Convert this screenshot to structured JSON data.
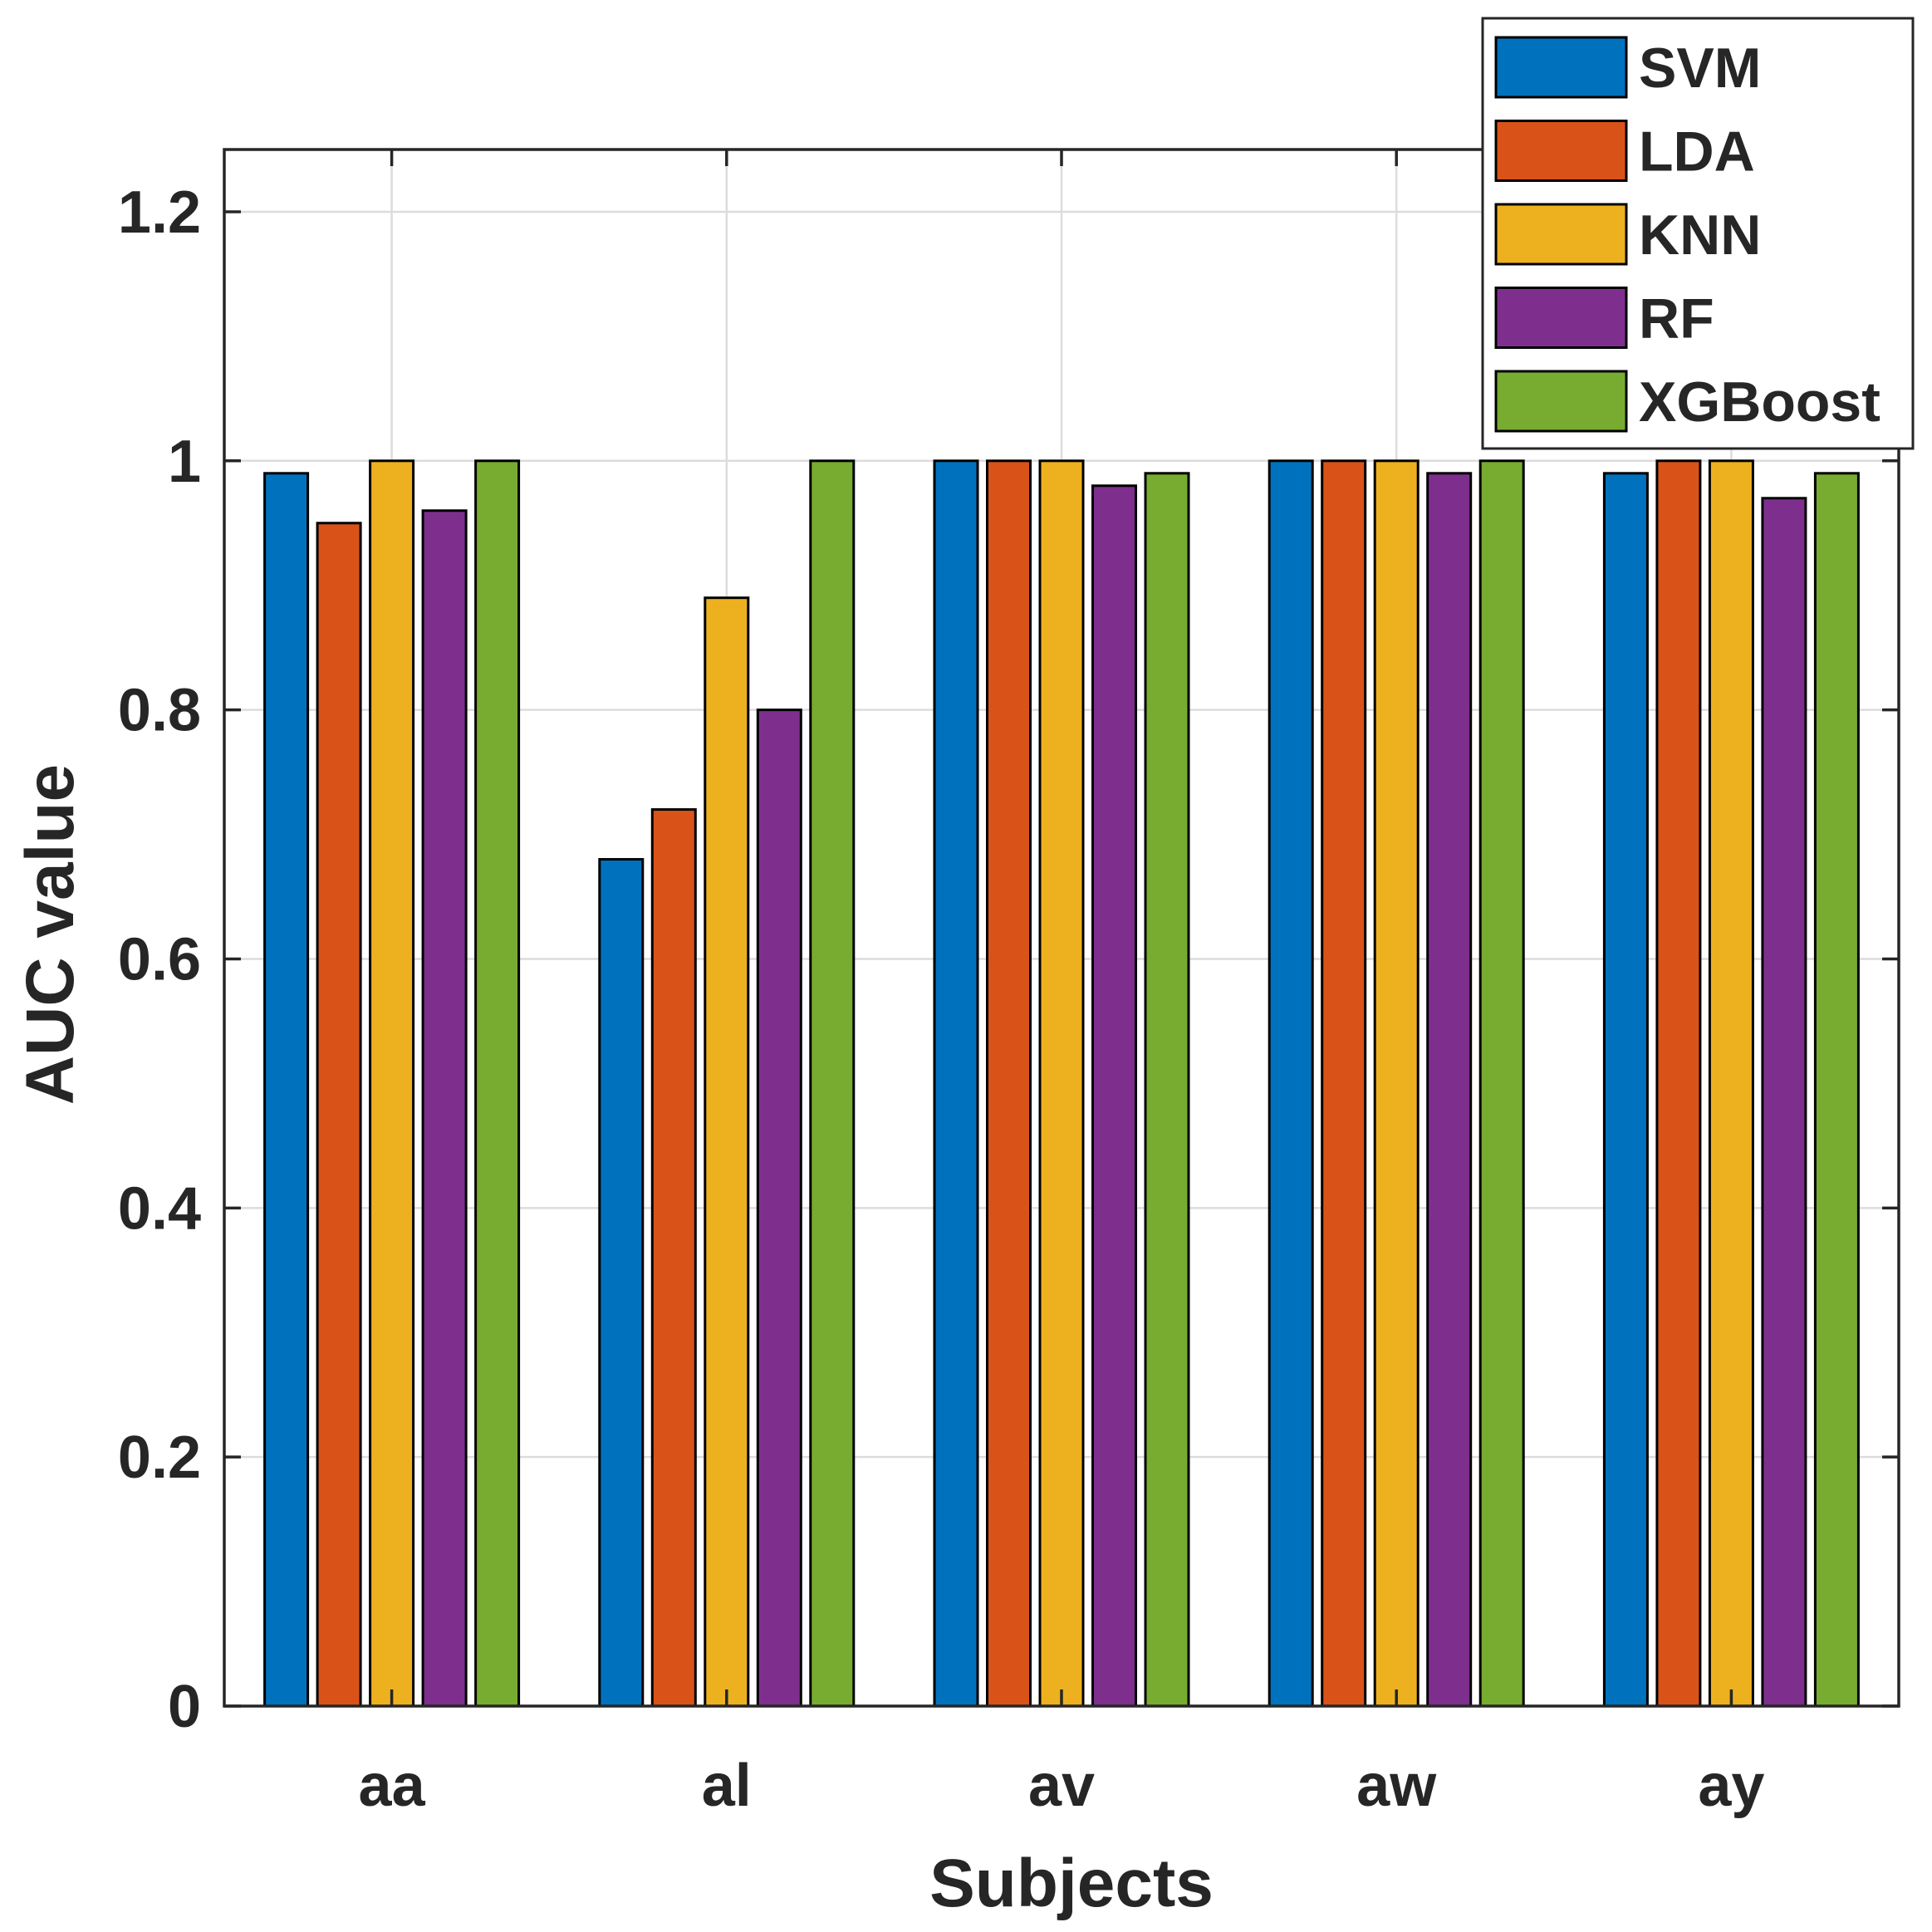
{
  "chart_data": {
    "type": "bar",
    "title": "",
    "xlabel": "Subjects",
    "ylabel": "AUC value",
    "categories": [
      "aa",
      "al",
      "av",
      "aw",
      "ay"
    ],
    "ylim": [
      0,
      1.25
    ],
    "yticks": [
      0,
      0.2,
      0.4,
      0.6,
      0.8,
      1,
      1.2
    ],
    "ytick_labels": [
      "0",
      "0.2",
      "0.4",
      "0.6",
      "0.8",
      "1",
      "1.2"
    ],
    "grid": true,
    "legend_position": "top-right",
    "series": [
      {
        "name": "SVM",
        "color": "#0072BD",
        "values": [
          0.99,
          0.68,
          1.0,
          1.0,
          0.99
        ]
      },
      {
        "name": "LDA",
        "color": "#D95319",
        "values": [
          0.95,
          0.72,
          1.0,
          1.0,
          1.0
        ]
      },
      {
        "name": "KNN",
        "color": "#EDB120",
        "values": [
          1.0,
          0.89,
          1.0,
          1.0,
          1.0
        ]
      },
      {
        "name": "RF",
        "color": "#7E2F8E",
        "values": [
          0.96,
          0.8,
          0.98,
          0.99,
          0.97
        ]
      },
      {
        "name": "XGBoost",
        "color": "#77AC30",
        "values": [
          1.0,
          1.0,
          0.99,
          1.0,
          0.99
        ]
      }
    ]
  }
}
